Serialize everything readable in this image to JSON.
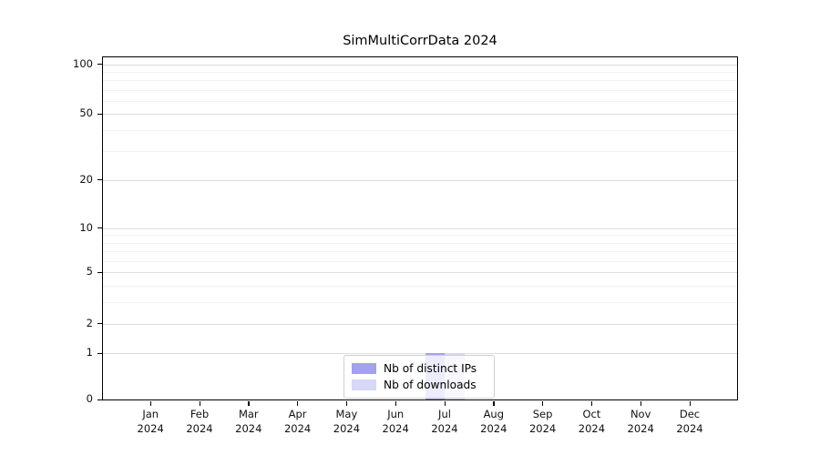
{
  "chart_data": {
    "type": "bar",
    "title": "SimMultiCorrData 2024",
    "categories": [
      "Jan",
      "Feb",
      "Mar",
      "Apr",
      "May",
      "Jun",
      "Jul",
      "Aug",
      "Sep",
      "Oct",
      "Nov",
      "Dec"
    ],
    "x_year_label": "2024",
    "series": [
      {
        "name": "Nb of distinct IPs",
        "color": "#a2a2ee",
        "values": [
          0,
          0,
          0,
          0,
          0,
          0,
          1,
          0,
          0,
          0,
          0,
          0
        ]
      },
      {
        "name": "Nb of downloads",
        "color": "#d7d7f6",
        "values": [
          0,
          0,
          0,
          0,
          0,
          0,
          1,
          0,
          0,
          0,
          0,
          0
        ]
      }
    ],
    "xlabel": "",
    "ylabel": "",
    "y_axis": {
      "scale": "log1p",
      "major_ticks": [
        0,
        1,
        2,
        5,
        10,
        20,
        50,
        100
      ],
      "minor_ticks": [
        3,
        4,
        6,
        7,
        8,
        9,
        30,
        40,
        60,
        70,
        80,
        90
      ],
      "ylim": [
        0,
        115
      ]
    },
    "grid": {
      "enabled": true,
      "major_color": "#dddddd",
      "minor_color": "#f2f2f2"
    },
    "legend": {
      "position": "lower center",
      "entries": [
        "Nb of distinct IPs",
        "Nb of downloads"
      ]
    }
  }
}
